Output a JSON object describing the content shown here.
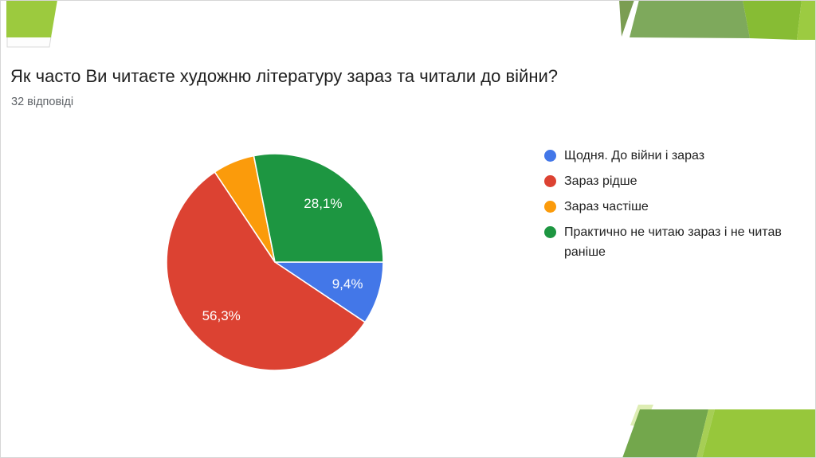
{
  "header": {
    "title": "Як часто Ви читаєте художню літературу зараз та читали до війни?",
    "responses": "32 відповіді"
  },
  "chart_data": {
    "type": "pie",
    "title": "Як часто Ви читаєте художню літературу зараз та читали до війни?",
    "subtitle": "32 відповіді",
    "start_angle_deg_from_top": 90,
    "direction": "clockwise",
    "legend_position": "right",
    "slices": [
      {
        "label": "Щодня. До війни і зараз",
        "value_pct": 9.375,
        "data_label": "9,4%",
        "color": "#4377E8"
      },
      {
        "label": "Зараз рідше",
        "value_pct": 56.25,
        "data_label": "56,3%",
        "color": "#DC4232"
      },
      {
        "label": "Зараз частіше",
        "value_pct": 6.25,
        "data_label": "",
        "color": "#FB9B0B"
      },
      {
        "label": "Практично не читаю зараз і не читав раніше",
        "value_pct": 28.125,
        "data_label": "28,1%",
        "color": "#1D9641"
      }
    ],
    "slice_label_color": "#ffffff",
    "slice_label_font_px": 17,
    "slice_border_color": "#ffffff"
  },
  "decor": {
    "top_left": "#9CCA3E",
    "top_left_underlay": "#fdfdfd",
    "top_right_sliver": "#7B9D52",
    "top_right_main": "#7EA95C",
    "top_right_bright": "#87BC34",
    "top_right_light": "#9CCB41",
    "bottom_right_pale": "#DEEDB4",
    "bottom_right_main": "#73A74C",
    "bottom_right_stripe": "#A6CE55",
    "bottom_right_bright": "#97C73B"
  },
  "colors": {
    "title_text": "#212121",
    "subtitle_text": "#5f6368",
    "frame_border": "#d6d6d6",
    "background": "#ffffff"
  }
}
